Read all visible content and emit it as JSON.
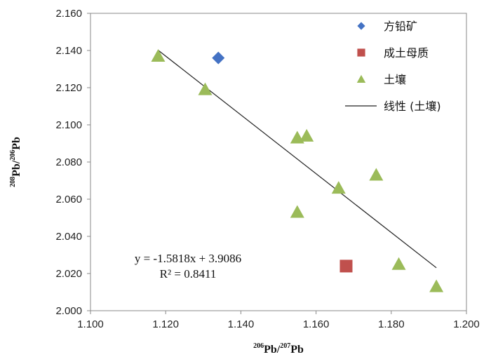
{
  "chart_data": {
    "type": "scatter",
    "title": "",
    "xlabel": {
      "sup": "206",
      "main": "Pb/",
      "sup2": "207",
      "main2": "Pb"
    },
    "ylabel": {
      "sup": "208",
      "main": "Pb/",
      "sup2": "206",
      "main2": "Pb"
    },
    "xlim": [
      1.1,
      1.2
    ],
    "ylim": [
      2.0,
      2.16
    ],
    "x_ticks": [
      "1.100",
      "1.120",
      "1.140",
      "1.160",
      "1.180",
      "1.200"
    ],
    "y_ticks": [
      "2.000",
      "2.020",
      "2.040",
      "2.060",
      "2.080",
      "2.100",
      "2.120",
      "2.140",
      "2.160"
    ],
    "series": [
      {
        "name": "方铅矿",
        "marker": "diamond",
        "color": "#4472C4",
        "points": [
          {
            "x": 1.134,
            "y": 2.136
          }
        ]
      },
      {
        "name": "成土母质",
        "marker": "square",
        "color": "#C0504D",
        "points": [
          {
            "x": 1.168,
            "y": 2.024
          }
        ]
      },
      {
        "name": "土壤",
        "marker": "triangle",
        "color": "#9BBB59",
        "points": [
          {
            "x": 1.118,
            "y": 2.137
          },
          {
            "x": 1.1305,
            "y": 2.119
          },
          {
            "x": 1.155,
            "y": 2.093
          },
          {
            "x": 1.1575,
            "y": 2.094
          },
          {
            "x": 1.166,
            "y": 2.066
          },
          {
            "x": 1.176,
            "y": 2.073
          },
          {
            "x": 1.155,
            "y": 2.053
          },
          {
            "x": 1.182,
            "y": 2.025
          },
          {
            "x": 1.192,
            "y": 2.013
          }
        ]
      }
    ],
    "trendline": {
      "name": "线性 (土壤)",
      "slope": -1.5818,
      "intercept": 3.9086,
      "x_range": [
        1.118,
        1.192
      ],
      "color": "#222222"
    },
    "annotations": {
      "equation": "y = -1.5818x + 3.9086",
      "r_squared": "R² = 0.8411"
    },
    "legend_position": "top-right"
  }
}
